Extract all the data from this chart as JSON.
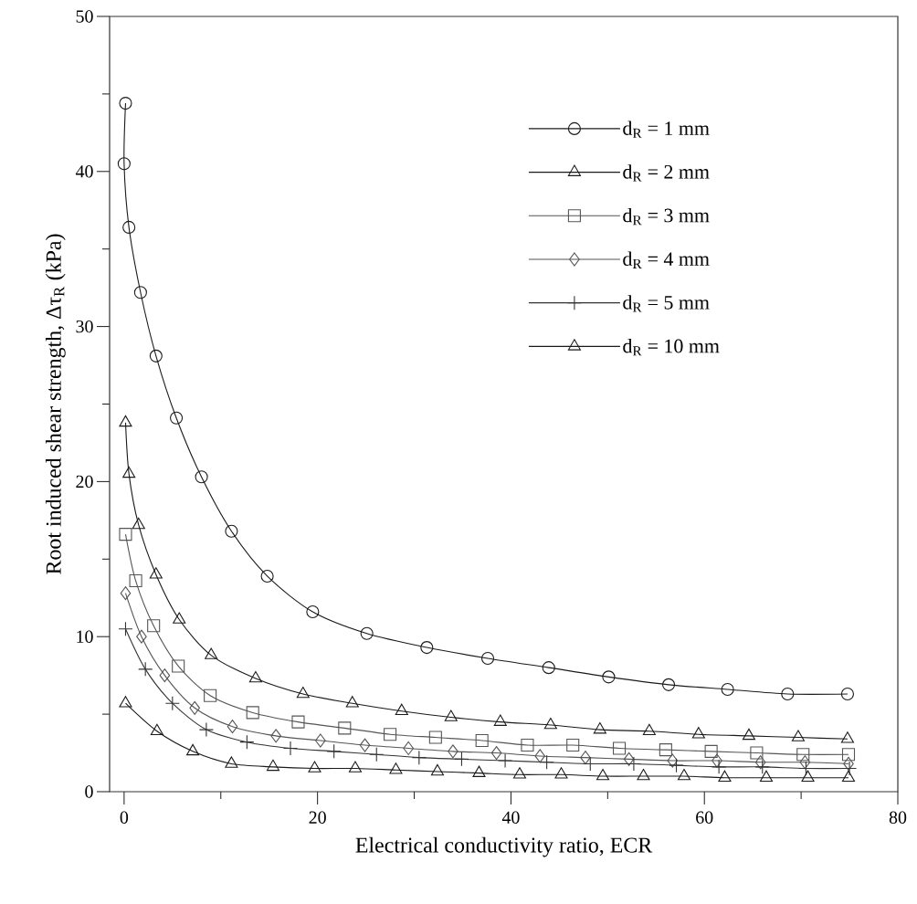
{
  "chart_data": {
    "type": "line",
    "xlabel": "Electrical conductivity ratio, ECR",
    "ylabel": "Root induced shear strength, Δτ$_{R}$ (kPa)",
    "xlim": [
      -1.5,
      80
    ],
    "ylim": [
      0,
      50
    ],
    "xticks": [
      0,
      20,
      40,
      60,
      80
    ],
    "yticks": [
      0,
      10,
      20,
      30,
      40,
      50
    ],
    "legend": "top right",
    "line_style": "solid",
    "series": [
      {
        "name": "d$_{R}$ = 1 mm",
        "color": "#1a1a1a",
        "marker": "circle",
        "x": [
          0.15,
          0,
          0.5,
          1.7,
          3.3,
          5.4,
          8.0,
          11.1,
          14.8,
          19.5,
          25.1,
          31.3,
          37.6,
          43.9,
          50.1,
          56.3,
          62.4,
          68.6,
          74.8
        ],
        "values": [
          44.4,
          40.5,
          36.4,
          32.2,
          28.1,
          24.1,
          20.3,
          16.8,
          13.9,
          11.6,
          10.2,
          9.3,
          8.6,
          8.0,
          7.4,
          6.9,
          6.6,
          6.3,
          6.3
        ]
      },
      {
        "name": "d$_{R}$ = 2 mm",
        "color": "#1a1a1a",
        "marker": "triangle",
        "x": [
          0.15,
          0.5,
          1.5,
          3.3,
          5.7,
          9.0,
          13.6,
          18.5,
          23.6,
          28.7,
          33.8,
          38.9,
          44.1,
          49.2,
          54.3,
          59.4,
          64.6,
          69.7,
          74.8
        ],
        "values": [
          23.8,
          20.5,
          17.2,
          14.0,
          11.1,
          8.8,
          7.3,
          6.3,
          5.7,
          5.2,
          4.8,
          4.5,
          4.3,
          4.0,
          3.9,
          3.7,
          3.6,
          3.5,
          3.4
        ]
      },
      {
        "name": "d$_{R}$ = 3 mm",
        "color": "#555555",
        "marker": "square",
        "x": [
          0.15,
          1.2,
          3.05,
          5.6,
          8.9,
          13.3,
          18.0,
          22.8,
          27.5,
          32.2,
          37.0,
          41.7,
          46.4,
          51.2,
          56.0,
          60.7,
          65.4,
          70.2,
          74.9
        ],
        "values": [
          16.6,
          13.6,
          10.7,
          8.1,
          6.2,
          5.1,
          4.5,
          4.1,
          3.7,
          3.5,
          3.3,
          3.0,
          3.0,
          2.8,
          2.7,
          2.6,
          2.5,
          2.4,
          2.4
        ]
      },
      {
        "name": "d$_{R}$ = 4 mm",
        "color": "#555555",
        "marker": "diamond",
        "x": [
          0.15,
          1.8,
          4.2,
          7.3,
          11.2,
          15.7,
          20.3,
          24.9,
          29.4,
          34.0,
          38.5,
          43.0,
          47.7,
          52.2,
          56.7,
          61.3,
          65.8,
          70.4,
          74.9
        ],
        "values": [
          12.8,
          10.0,
          7.5,
          5.4,
          4.2,
          3.6,
          3.3,
          3.0,
          2.8,
          2.6,
          2.5,
          2.3,
          2.2,
          2.1,
          2.0,
          2.0,
          1.9,
          1.9,
          1.8
        ]
      },
      {
        "name": "d$_{R}$ = 5 mm",
        "color": "#333333",
        "marker": "cross",
        "x": [
          0.15,
          2.2,
          5.0,
          8.5,
          12.7,
          17.2,
          21.7,
          26.1,
          30.5,
          34.9,
          39.4,
          43.7,
          48.2,
          52.7,
          57.1,
          61.5,
          66.0,
          70.5,
          75.0
        ],
        "values": [
          10.5,
          7.9,
          5.7,
          4.0,
          3.2,
          2.8,
          2.6,
          2.4,
          2.2,
          2.1,
          2.0,
          1.9,
          1.8,
          1.8,
          1.7,
          1.6,
          1.6,
          1.5,
          1.5
        ]
      },
      {
        "name": "d$_{R}$ = 10 mm",
        "color": "#1a1a1a",
        "marker": "triangle-down",
        "x": [
          0.15,
          3.4,
          7.1,
          11.1,
          15.4,
          19.7,
          23.9,
          28.1,
          32.4,
          36.7,
          40.9,
          45.2,
          49.5,
          53.7,
          57.9,
          62.1,
          66.4,
          70.7,
          74.9
        ],
        "values": [
          5.7,
          3.9,
          2.6,
          1.8,
          1.6,
          1.5,
          1.5,
          1.4,
          1.3,
          1.2,
          1.1,
          1.1,
          1.0,
          1.0,
          1.0,
          0.9,
          0.9,
          0.9,
          0.9
        ]
      }
    ]
  }
}
